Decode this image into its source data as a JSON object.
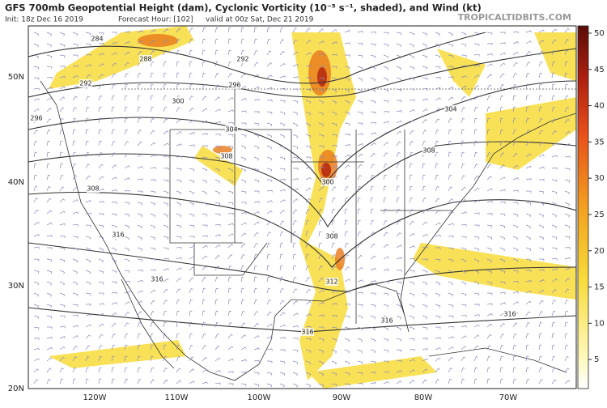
{
  "header": {
    "title": "GFS 700mb Geopotential Height (dam), Cyclonic Vorticity (10⁻⁵ s⁻¹, shaded), and Wind (kt)",
    "init": "Init: 18z Dec 16 2019",
    "forecast_hour": "Forecast Hour: [102]",
    "valid": "valid at 00z Sat, Dec 21 2019",
    "watermark": "TROPICALTIDBITS.COM"
  },
  "map": {
    "lat_labels": [
      "50N",
      "40N",
      "30N",
      "20N"
    ],
    "lon_labels": [
      "120W",
      "110W",
      "100W",
      "90W",
      "80W",
      "70W"
    ],
    "contour_labels": [
      284,
      288,
      292,
      292,
      296,
      296,
      300,
      300,
      304,
      304,
      308,
      308,
      308,
      308,
      312,
      316,
      316,
      316,
      316,
      316
    ]
  },
  "colorbar": {
    "lim": [
      1,
      51
    ],
    "ticks": [
      5,
      10,
      15,
      20,
      25,
      30,
      35,
      40,
      45,
      50
    ]
  }
}
